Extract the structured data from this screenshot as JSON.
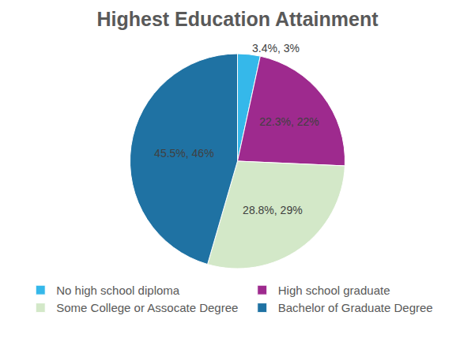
{
  "chart_data": {
    "type": "pie",
    "title": "Highest Education Attainment",
    "categories": [
      "No high school diploma",
      "High school graduate",
      "Some College or Assocate Degree",
      "Bachelor of Graduate Degree"
    ],
    "values": [
      3.4,
      22.3,
      28.8,
      45.5
    ],
    "value_labels": [
      "3.4%, 3%",
      "22.3%, 22%",
      "28.8%, 29%",
      "45.5%, 46%"
    ],
    "colors": [
      "#35b8ea",
      "#9e2a8e",
      "#d3e8c8",
      "#1f72a3"
    ],
    "data_labels": true,
    "legend": "bottom"
  }
}
